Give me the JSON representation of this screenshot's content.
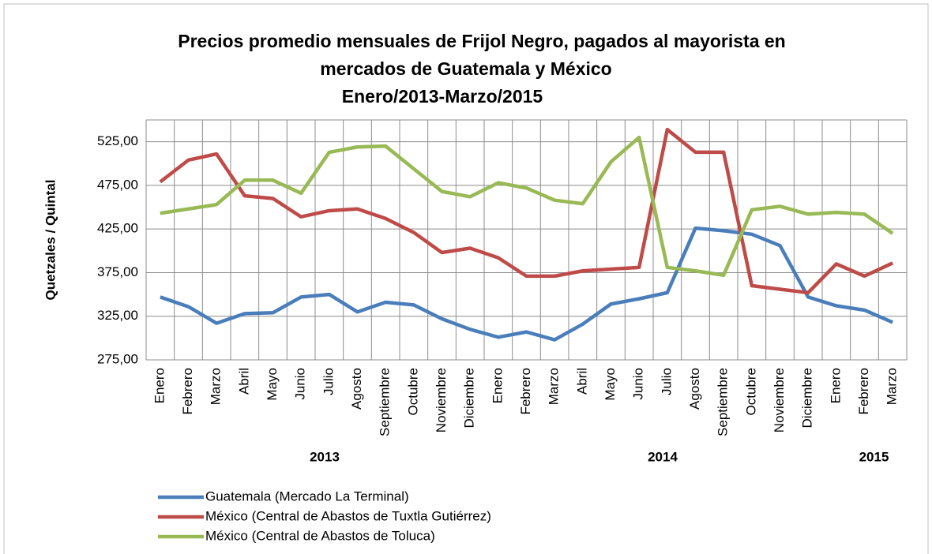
{
  "chart_data": {
    "type": "line",
    "title_lines": [
      "Precios promedio mensuales de Frijol Negro, pagados al mayorista en",
      "mercados de Guatemala y México",
      "Enero/2013-Marzo/2015"
    ],
    "y_label": "Quetzales / Quintal",
    "categories": [
      "Enero",
      "Febrero",
      "Marzo",
      "Abril",
      "Mayo",
      "Junio",
      "Julio",
      "Agosto",
      "Septiembre",
      "Octubre",
      "Noviembre",
      "Diciembre",
      "Enero",
      "Febrero",
      "Marzo",
      "Abril",
      "Mayo",
      "Junio",
      "Julio",
      "Agosto",
      "Septiembre",
      "Octubre",
      "Noviembre",
      "Diciembre",
      "Enero",
      "Febrero",
      "Marzo"
    ],
    "year_labels": [
      "2013",
      "2014",
      "2015"
    ],
    "series": [
      {
        "name": "Guatemala (Mercado La Terminal)",
        "color": "#4a7ebb",
        "values": [
          347,
          336,
          317,
          328,
          329,
          347,
          350,
          330,
          341,
          338,
          322,
          310,
          301,
          307,
          298,
          316,
          339,
          345,
          352,
          426,
          423,
          419,
          406,
          347,
          337,
          332,
          318
        ]
      },
      {
        "name": "México (Central de Abastos de Tuxtla Gutiérrez)",
        "color": "#be4b48",
        "values": [
          479,
          504,
          511,
          463,
          460,
          439,
          446,
          448,
          437,
          421,
          398,
          403,
          392,
          371,
          371,
          377,
          379,
          381,
          539,
          513,
          513,
          360,
          356,
          352,
          385,
          371,
          386
        ]
      },
      {
        "name": "México (Central de Abastos de Toluca)",
        "color": "#98b954",
        "values": [
          443,
          448,
          453,
          481,
          481,
          466,
          513,
          519,
          520,
          494,
          468,
          462,
          478,
          472,
          458,
          454,
          502,
          530,
          381,
          377,
          372,
          447,
          451,
          442,
          444,
          442,
          420
        ]
      }
    ],
    "ylim": [
      275,
      550
    ],
    "yticks": [
      {
        "value": 275,
        "label": "275,00"
      },
      {
        "value": 325,
        "label": "325,00"
      },
      {
        "value": 375,
        "label": "375,00"
      },
      {
        "value": 425,
        "label": "425,00"
      },
      {
        "value": 475,
        "label": "475,00"
      },
      {
        "value": 525,
        "label": "525,00"
      }
    ],
    "grid": true
  }
}
